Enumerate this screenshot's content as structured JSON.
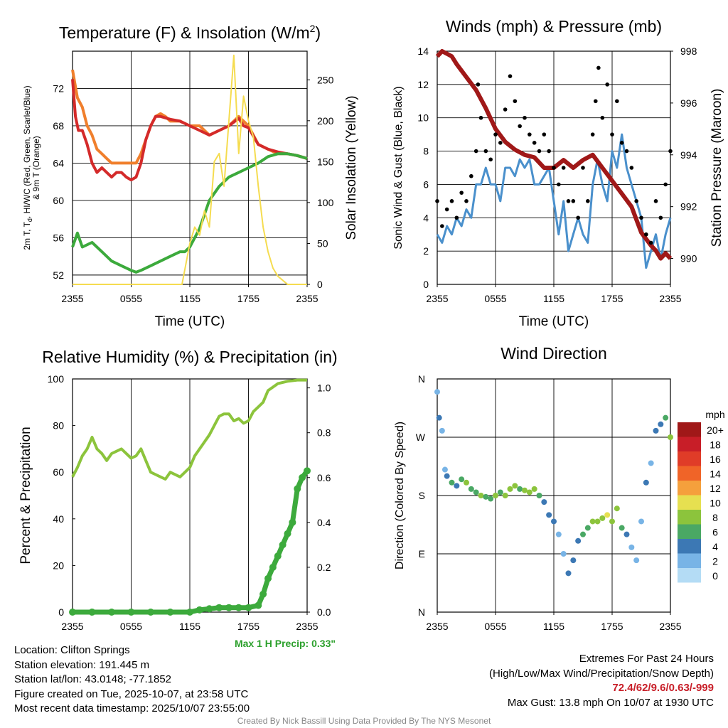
{
  "chart_data": [
    {
      "type": "line",
      "title": "Temperature (F) & Insolation (W/m²)",
      "title_parts": {
        "main": "Temperature (F) & Insolation (W/m",
        "sup": "2",
        "end": ")"
      },
      "xlabel": "Time (UTC)",
      "ylabel_lines": [
        "2m T, T",
        "d",
        ", HI/WC (Red, Green, Scarlet/Blue)",
        "& 9m T (Orange)"
      ],
      "y2label": "Solar Insolation (Yellow)",
      "x_ticks": [
        "2355",
        "0555",
        "1155",
        "1755",
        "2355"
      ],
      "ylim": [
        51,
        76
      ],
      "y_ticks": [
        52,
        56,
        60,
        64,
        68,
        72
      ],
      "y2lim": [
        0,
        285
      ],
      "y2_ticks": [
        0,
        50,
        100,
        150,
        200,
        250
      ],
      "series": [
        {
          "name": "9m T (Orange)",
          "color": "#f07f2c",
          "axis": "left",
          "x": [
            0,
            0.5,
            1,
            1.5,
            2,
            2.5,
            3,
            3.5,
            4,
            5,
            6,
            6.5,
            7,
            7.5,
            8,
            8.5,
            9,
            9.5,
            10,
            11,
            12,
            13,
            14,
            15,
            16,
            17,
            17.5,
            18,
            19,
            20,
            21,
            22,
            23,
            24
          ],
          "y": [
            74,
            71,
            70,
            68,
            67,
            65.5,
            65,
            64.5,
            64,
            64,
            64,
            64,
            65,
            66.5,
            68,
            69,
            69.3,
            69,
            68.5,
            68.5,
            68,
            68,
            67,
            67.5,
            68,
            69,
            68.5,
            68,
            66,
            65.5,
            65,
            65,
            64.8,
            64.5
          ]
        },
        {
          "name": "2m T (Red)",
          "color": "#d42a2a",
          "axis": "left",
          "x": [
            0,
            0.3,
            0.6,
            1,
            1.5,
            2,
            2.5,
            3,
            3.5,
            4,
            4.5,
            5,
            5.5,
            6,
            6.5,
            7,
            7.5,
            8,
            8.5,
            9,
            10,
            11,
            12,
            13,
            14,
            15,
            16,
            17,
            17.5,
            18,
            19,
            20,
            21,
            22,
            23,
            24
          ],
          "y": [
            73,
            69,
            67.5,
            67.5,
            66,
            64,
            63,
            63.5,
            63,
            62.5,
            63,
            63,
            62.5,
            62.2,
            62.5,
            64,
            66.5,
            68,
            69,
            69,
            68.7,
            68.5,
            68,
            67.5,
            67,
            67.5,
            68,
            68.8,
            68,
            67.8,
            66,
            65.5,
            65.2,
            65,
            64.8,
            64.5
          ]
        },
        {
          "name": "Td (Green)",
          "color": "#3caa3c",
          "axis": "left",
          "x": [
            0,
            0.5,
            1,
            2,
            3,
            4,
            5,
            6,
            6.5,
            7,
            8,
            9,
            10,
            11,
            11.5,
            12,
            12.5,
            13,
            13.5,
            14,
            15,
            16,
            17,
            18,
            19,
            20,
            21,
            22,
            23,
            24
          ],
          "y": [
            55,
            56.5,
            55,
            55.5,
            54.5,
            53.5,
            53,
            52.5,
            52.3,
            52.5,
            53,
            53.5,
            54,
            54.5,
            54.5,
            55,
            56,
            57,
            58.5,
            60,
            61.5,
            62.5,
            63,
            63.5,
            64,
            64.7,
            65,
            65,
            64.8,
            64.5
          ]
        },
        {
          "name": "Solar Insolation (Yellow)",
          "color": "#f5dc50",
          "axis": "right",
          "x": [
            0,
            11.2,
            11.6,
            12,
            12.5,
            13,
            13.5,
            14,
            14.5,
            15,
            15.5,
            16,
            16.5,
            17,
            17.5,
            18,
            18.5,
            19,
            19.5,
            20,
            20.5,
            21,
            21.5,
            22,
            24
          ],
          "y": [
            0,
            0,
            25,
            50,
            70,
            60,
            90,
            70,
            150,
            160,
            120,
            200,
            280,
            160,
            230,
            200,
            180,
            120,
            70,
            40,
            20,
            10,
            5,
            0,
            0
          ]
        }
      ]
    },
    {
      "type": "line",
      "title": "Winds (mph) & Pressure (mb)",
      "xlabel": "Time (UTC)",
      "ylabel": "Sonic Wind & Gust (Blue, Black)",
      "y2label": "Station Pressure (Maroon)",
      "x_ticks": [
        "2355",
        "0555",
        "1155",
        "1755",
        "2355"
      ],
      "ylim": [
        0,
        14
      ],
      "y_ticks": [
        0,
        2,
        4,
        6,
        8,
        10,
        12,
        14
      ],
      "y2lim": [
        989,
        998
      ],
      "y2_ticks": [
        990,
        992,
        994,
        996,
        998
      ],
      "series": [
        {
          "name": "Sonic Wind (Blue)",
          "color": "#4a90cc",
          "axis": "left",
          "x": [
            0,
            0.5,
            1,
            1.5,
            2,
            2.5,
            3,
            3.5,
            4,
            4.5,
            5,
            5.5,
            6,
            6.5,
            7,
            7.5,
            8,
            8.5,
            9,
            9.5,
            10,
            10.5,
            11,
            11.5,
            12,
            12.5,
            13,
            13.5,
            14,
            14.5,
            15,
            15.5,
            16,
            16.5,
            17,
            17.5,
            18,
            18.5,
            19,
            19.5,
            20,
            20.5,
            21,
            21.5,
            22,
            22.5,
            23,
            23.5,
            24
          ],
          "y": [
            3,
            2.5,
            3.5,
            3,
            4,
            3.5,
            4.5,
            4,
            6,
            6,
            7,
            6,
            6,
            5,
            7,
            7,
            6.5,
            7.5,
            7,
            7.5,
            6,
            6,
            6.5,
            7,
            5,
            3,
            5,
            2,
            3,
            4,
            3,
            2.5,
            6,
            7.5,
            6,
            5,
            8,
            7,
            9,
            7,
            6,
            5,
            4,
            1,
            2,
            3,
            1.5,
            3,
            4
          ]
        },
        {
          "name": "Station Pressure (Maroon)",
          "color": "#a01818",
          "axis": "right",
          "x": [
            0,
            0.5,
            1,
            1.5,
            2,
            3,
            4,
            5,
            6,
            7,
            8,
            9,
            10,
            11,
            12,
            13,
            14,
            15,
            16,
            17,
            18,
            19,
            20,
            21,
            22,
            22.5,
            23,
            23.5,
            24
          ],
          "y": [
            997.8,
            998,
            997.9,
            997.8,
            997.5,
            997,
            996.5,
            995.8,
            995,
            994.5,
            994.2,
            994,
            993.9,
            993.5,
            993.5,
            993.8,
            993.5,
            993.8,
            994,
            993.5,
            993,
            992.5,
            992,
            991,
            990.5,
            990.3,
            990,
            990.2,
            990
          ]
        }
      ],
      "gusts_black": {
        "x": [
          0,
          0.5,
          1,
          1.5,
          2,
          2.5,
          3,
          3.5,
          4,
          4.2,
          4.5,
          5,
          5.5,
          6,
          6.5,
          7,
          7.5,
          8,
          8.5,
          9,
          9.5,
          10,
          10.5,
          11,
          11.5,
          12,
          12.5,
          13,
          13.5,
          14,
          14.5,
          15,
          15.5,
          16,
          16.3,
          16.6,
          17,
          17.5,
          18,
          18.5,
          19,
          19.5,
          20,
          20.5,
          21,
          21.5,
          22,
          22.5,
          23,
          23.5,
          24
        ],
        "y": [
          5,
          3.5,
          4.5,
          5,
          4,
          5.5,
          5,
          6.5,
          8,
          12,
          10,
          8,
          7.5,
          9,
          8.5,
          10.5,
          12.5,
          11,
          9.5,
          10,
          9,
          8.5,
          8,
          9,
          8,
          7,
          6,
          7,
          5,
          5,
          4,
          7,
          5,
          9,
          11,
          13,
          10,
          12,
          9,
          11,
          8.5,
          8,
          7,
          5,
          4,
          3,
          2.5,
          5,
          4,
          6,
          8
        ]
      }
    },
    {
      "type": "line",
      "title": "Relative Humidity (%) & Precipitation (in)",
      "ylabel": "Percent & Precipitation",
      "x_ticks": [
        "2355",
        "0555",
        "1155",
        "1755",
        "2355"
      ],
      "ylim": [
        0,
        100
      ],
      "y_ticks": [
        0,
        20,
        40,
        60,
        80,
        100
      ],
      "y2lim": [
        0,
        1.04
      ],
      "y2_ticks": [
        "0.0",
        "0.2",
        "0.4",
        "0.6",
        "0.8",
        "1.0"
      ],
      "series": [
        {
          "name": "Relative Humidity",
          "color": "#8cc43c",
          "axis": "left",
          "x": [
            0,
            0.5,
            1,
            1.5,
            2,
            2.5,
            3,
            3.5,
            4,
            5,
            6,
            6.5,
            7,
            7.5,
            8,
            8.5,
            9,
            9.5,
            10,
            11,
            12,
            12.5,
            13,
            13.5,
            14,
            14.5,
            15,
            15.5,
            16,
            16.5,
            17,
            17.5,
            18,
            18.5,
            19,
            19.5,
            20,
            21,
            22,
            23,
            24
          ],
          "y": [
            58,
            62,
            67,
            70,
            75,
            70,
            68,
            65,
            68,
            70,
            66,
            67,
            70,
            65,
            60,
            59,
            58,
            57,
            60,
            58,
            62,
            67,
            70,
            73,
            76,
            80,
            84,
            85,
            85,
            82,
            83,
            81,
            82,
            86,
            88,
            90,
            95,
            98,
            99,
            99.5,
            99.5
          ]
        },
        {
          "name": "Precipitation",
          "color": "#3caa3c",
          "axis": "right",
          "x": [
            0,
            2,
            4,
            6,
            8,
            10,
            12,
            13,
            14,
            15,
            16,
            17,
            18,
            19,
            19.5,
            20,
            20.5,
            21,
            21.5,
            22,
            22.5,
            23,
            23.5,
            24
          ],
          "y": [
            0,
            0,
            0,
            0,
            0,
            0,
            0,
            0.01,
            0.015,
            0.02,
            0.02,
            0.02,
            0.02,
            0.03,
            0.08,
            0.15,
            0.2,
            0.25,
            0.3,
            0.35,
            0.4,
            0.55,
            0.6,
            0.63
          ]
        }
      ],
      "annotation": "Max 1 H Precip: 0.33\""
    },
    {
      "type": "scatter",
      "title": "Wind Direction",
      "ylabel": "Direction (Colored By Speed)",
      "x_ticks": [
        "2355",
        "0555",
        "1155",
        "1755",
        "2355"
      ],
      "ylim": [
        0,
        360
      ],
      "y_ticks": [
        "N",
        "E",
        "S",
        "W",
        "N"
      ],
      "legend_title": "mph",
      "legend_labels": [
        "20+",
        "18",
        "16",
        "14",
        "12",
        "10",
        "8",
        "6",
        "4",
        "2",
        "0"
      ],
      "legend_colors": [
        "#a01818",
        "#c81e28",
        "#e03c28",
        "#f06428",
        "#f5a03c",
        "#e6e050",
        "#8cc43c",
        "#4aa864",
        "#3c78b4",
        "#78b4e6",
        "#b4dcf5"
      ],
      "points": {
        "x": [
          0,
          0.2,
          0.5,
          0.8,
          1,
          1.5,
          2,
          2.5,
          3,
          3.5,
          4,
          4.5,
          5,
          5.5,
          6,
          6.5,
          7,
          7.5,
          8,
          8.5,
          9,
          9.5,
          10,
          10.5,
          11,
          11.5,
          12,
          12.5,
          13,
          13.5,
          14,
          14.5,
          15,
          15.5,
          16,
          16.5,
          17,
          17.5,
          18,
          18.5,
          19,
          19.5,
          20,
          20.5,
          21,
          21.5,
          22,
          22.5,
          23,
          23.5,
          24
        ],
        "y": [
          340,
          300,
          280,
          220,
          210,
          200,
          195,
          205,
          200,
          190,
          185,
          180,
          178,
          175,
          180,
          185,
          180,
          190,
          195,
          190,
          188,
          185,
          190,
          180,
          170,
          150,
          140,
          120,
          90,
          60,
          80,
          110,
          120,
          130,
          140,
          140,
          145,
          150,
          140,
          160,
          130,
          120,
          100,
          80,
          140,
          200,
          230,
          280,
          290,
          300,
          270
        ],
        "speed": [
          2,
          4,
          1,
          2,
          4,
          5,
          4,
          6,
          7,
          6,
          6,
          7,
          6,
          6,
          7,
          6,
          7,
          8,
          7,
          6,
          7,
          8,
          7,
          6,
          4,
          4,
          3,
          2,
          2,
          3,
          4,
          3,
          5,
          6,
          7,
          8,
          8,
          9,
          7,
          8,
          6,
          3,
          2,
          1,
          2,
          3,
          2,
          4,
          4,
          5,
          7
        ]
      }
    }
  ],
  "annotation_color": "#2ca02c",
  "footer": {
    "location": "Location: Clifton Springs",
    "elevation": "Station elevation: 191.445 m",
    "latlon": "Station lat/lon: 43.0148; -77.1852",
    "created": "Figure created on Tue, 2025-10-07, at 23:58 UTC",
    "recent": "Most recent data timestamp: 2025/10/07 23:55:00",
    "extremes_title": "Extremes For Past 24 Hours",
    "extremes_sub": "(High/Low/Max Wind/Precipitation/Snow Depth)",
    "extremes_values": "72.4/62/9.6/0.63/-999",
    "max_gust": "Max Gust: 13.8 mph On 10/07 at 1930 UTC",
    "credit": "Created By Nick Bassill Using Data Provided By The NYS Mesonet"
  }
}
